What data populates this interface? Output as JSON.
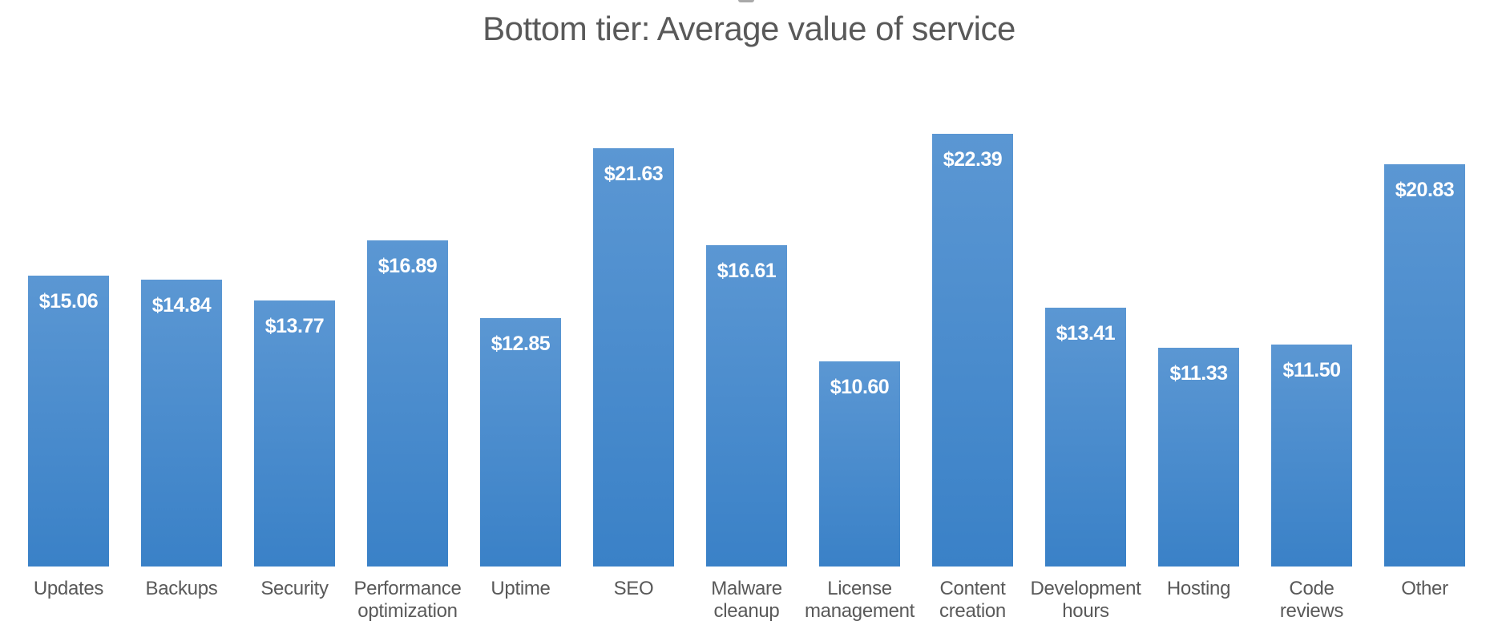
{
  "chart_data": {
    "type": "bar",
    "title": "Bottom tier: Average value of service",
    "categories": [
      "Updates",
      "Backups",
      "Security",
      "Performance\noptimization",
      "Uptime",
      "SEO",
      "Malware\ncleanup",
      "License\nmanagement",
      "Content\ncreation",
      "Development\nhours",
      "Hosting",
      "Code reviews",
      "Other"
    ],
    "values": [
      15.06,
      14.84,
      13.77,
      16.89,
      12.85,
      21.63,
      16.61,
      10.6,
      22.39,
      13.41,
      11.33,
      11.5,
      20.83
    ],
    "labels": [
      "$15.06",
      "$14.84",
      "$13.77",
      "$16.89",
      "$12.85",
      "$21.63",
      "$16.61",
      "$10.60",
      "$22.39",
      "$13.41",
      "$11.33",
      "$11.50",
      "$20.83"
    ],
    "xlabel": "",
    "ylabel": "",
    "ylim": [
      0,
      29.3
    ],
    "grid": false,
    "legend": false,
    "value_label_position": "inside-end",
    "colors": {
      "bar_top": "#5b97d3",
      "bar_bottom": "#3a81c7",
      "value_label": "#ffffff",
      "category_label": "#595959",
      "title": "#595959"
    }
  }
}
